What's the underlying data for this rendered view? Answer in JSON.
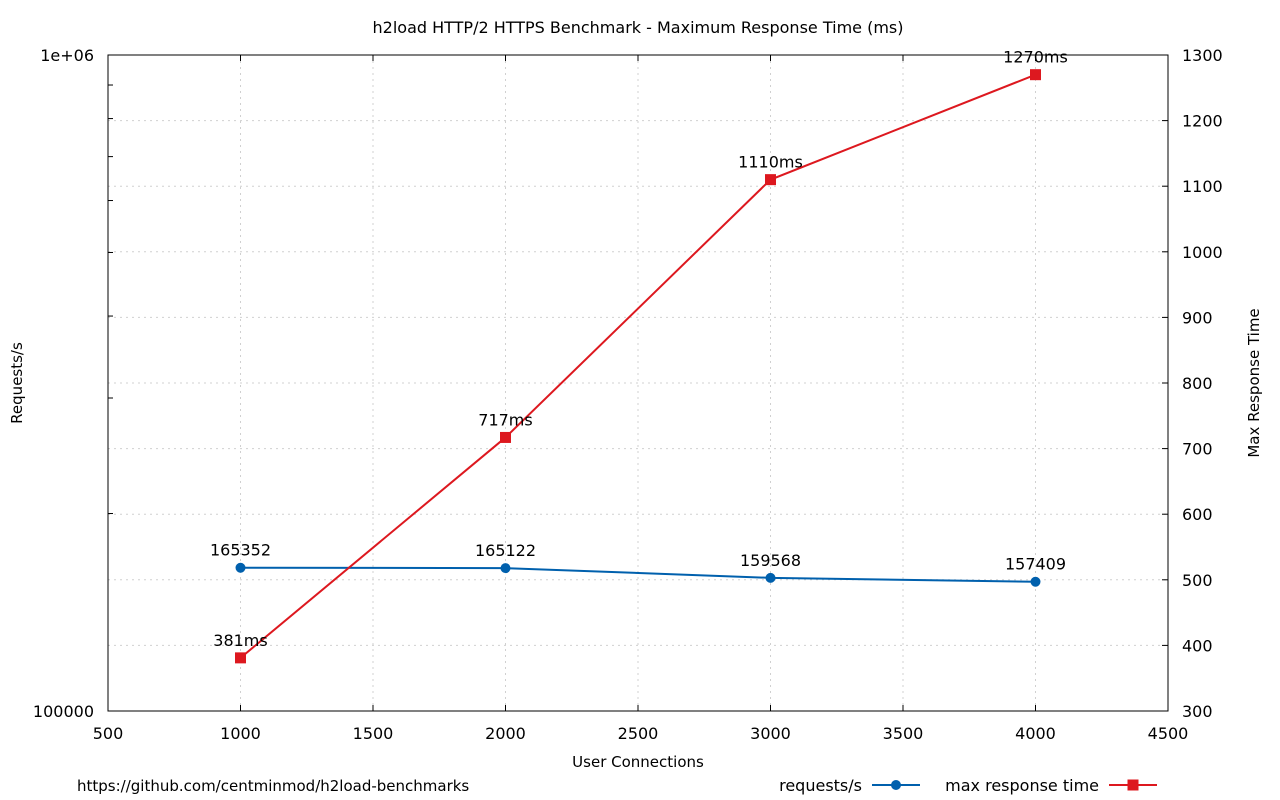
{
  "chart_data": {
    "type": "line",
    "title": "h2load HTTP/2 HTTPS Benchmark - Maximum Response Time (ms)",
    "xlabel": "User Connections",
    "ylabel_left": "Requests/s",
    "ylabel_right": "Max Response Time",
    "x": [
      1000,
      2000,
      3000,
      4000
    ],
    "xlim": [
      500,
      4500
    ],
    "x_ticks": [
      500,
      1000,
      1500,
      2000,
      2500,
      3000,
      3500,
      4000,
      4500
    ],
    "y_left_scale": "log",
    "y_left_lim": [
      100000,
      1000000
    ],
    "y_left_tick_labels": [
      "100000",
      "1e+06"
    ],
    "y_right_lim": [
      300,
      1300
    ],
    "y_right_ticks": [
      300,
      400,
      500,
      600,
      700,
      800,
      900,
      1000,
      1100,
      1200,
      1300
    ],
    "grid": true,
    "legend_position": "bottom-right",
    "series": [
      {
        "name": "requests/s",
        "axis": "left",
        "color": "#0060ad",
        "marker": "circle",
        "values": [
          165352,
          165122,
          159568,
          157409
        ],
        "labels": [
          "165352",
          "165122",
          "159568",
          "157409"
        ]
      },
      {
        "name": "max response time",
        "axis": "right",
        "color": "#dd181f",
        "marker": "square",
        "values": [
          381,
          717,
          1110,
          1270
        ],
        "labels": [
          "381ms",
          "717ms",
          "1110ms",
          "1270ms"
        ]
      }
    ]
  },
  "footer": {
    "source": "https://github.com/centminmod/h2load-benchmarks"
  }
}
